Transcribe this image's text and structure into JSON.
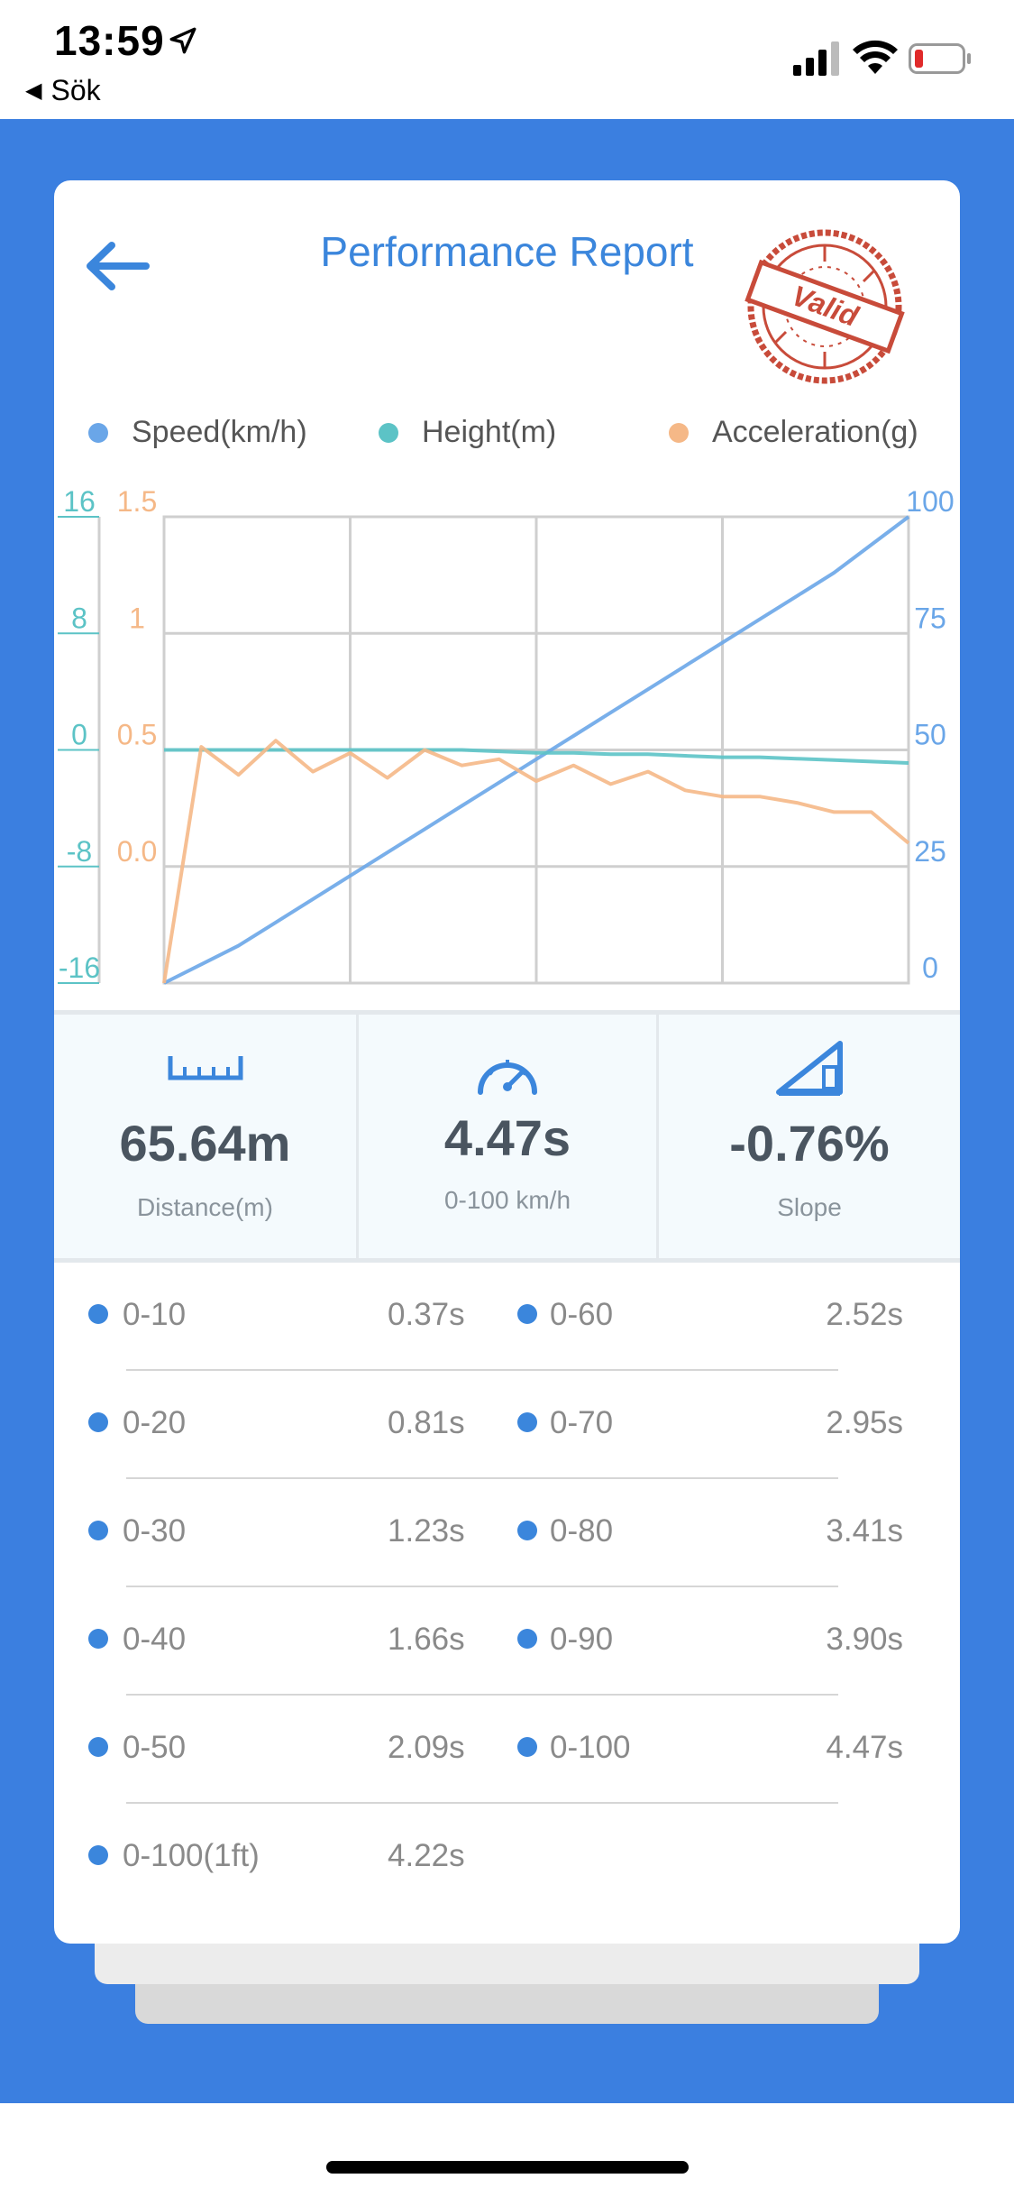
{
  "status_bar": {
    "time": "13:59",
    "back_app_label": "Sök",
    "icons": [
      "location-arrow-icon",
      "cellular-signal-icon",
      "wifi-icon",
      "battery-low-icon"
    ]
  },
  "header": {
    "title": "Performance Report",
    "stamp_text": "Valid",
    "accent_color": "#3b86dc",
    "stamp_color": "#c84b3a"
  },
  "legend": [
    {
      "label": "Speed(km/h)",
      "color": "#6aa6e8"
    },
    {
      "label": "Height(m)",
      "color": "#5cc3c6"
    },
    {
      "label": "Acceleration(g)",
      "color": "#f5b887"
    }
  ],
  "chart_data": {
    "type": "line",
    "x": [
      0,
      1,
      2,
      3,
      4,
      5,
      6,
      7,
      8,
      9,
      10,
      11,
      12,
      13,
      14,
      15,
      16,
      17,
      18,
      19,
      20
    ],
    "grid": true,
    "y_axes": {
      "height": {
        "ticks": [
          "16",
          "8",
          "0",
          "-8",
          "-16"
        ],
        "range": [
          -16,
          16
        ],
        "color": "#5cc3c6"
      },
      "acceleration": {
        "ticks": [
          "1.5",
          "1",
          "0.5",
          "0.0"
        ],
        "range": [
          0,
          1.5
        ],
        "color": "#f5b887"
      },
      "speed": {
        "ticks": [
          "100",
          "75",
          "50",
          "25",
          "0"
        ],
        "range": [
          0,
          100
        ],
        "color": "#6aa6e8"
      }
    },
    "series": [
      {
        "name": "Speed(km/h)",
        "axis": "speed",
        "values": [
          0,
          4,
          8,
          13,
          18,
          23,
          28,
          33,
          38,
          43,
          48,
          53,
          58,
          63,
          68,
          73,
          78,
          83,
          88,
          94,
          100
        ]
      },
      {
        "name": "Height(m)",
        "axis": "height",
        "values": [
          0,
          0,
          0,
          0,
          0,
          0,
          0,
          0,
          0,
          -0.1,
          -0.2,
          -0.2,
          -0.3,
          -0.3,
          -0.4,
          -0.5,
          -0.5,
          -0.6,
          -0.7,
          -0.8,
          -0.9
        ]
      },
      {
        "name": "Acceleration(g)",
        "axis": "acceleration",
        "values": [
          0,
          0.76,
          0.67,
          0.78,
          0.68,
          0.74,
          0.66,
          0.75,
          0.7,
          0.72,
          0.65,
          0.7,
          0.64,
          0.68,
          0.62,
          0.6,
          0.6,
          0.58,
          0.55,
          0.55,
          0.45
        ]
      }
    ]
  },
  "stats": [
    {
      "icon": "ruler-icon",
      "value": "65.64m",
      "label": "Distance(m)"
    },
    {
      "icon": "speedometer-icon",
      "value": "4.47s",
      "label": "0-100 km/h"
    },
    {
      "icon": "slope-icon",
      "value": "-0.76%",
      "label": "Slope"
    }
  ],
  "splits": [
    [
      {
        "name": "0-10",
        "time": "0.37s"
      },
      {
        "name": "0-60",
        "time": "2.52s"
      }
    ],
    [
      {
        "name": "0-20",
        "time": "0.81s"
      },
      {
        "name": "0-70",
        "time": "2.95s"
      }
    ],
    [
      {
        "name": "0-30",
        "time": "1.23s"
      },
      {
        "name": "0-80",
        "time": "3.41s"
      }
    ],
    [
      {
        "name": "0-40",
        "time": "1.66s"
      },
      {
        "name": "0-90",
        "time": "3.90s"
      }
    ],
    [
      {
        "name": "0-50",
        "time": "2.09s"
      },
      {
        "name": "0-100",
        "time": "4.47s"
      }
    ],
    [
      {
        "name": "0-100(1ft)",
        "time": "4.22s"
      }
    ]
  ]
}
